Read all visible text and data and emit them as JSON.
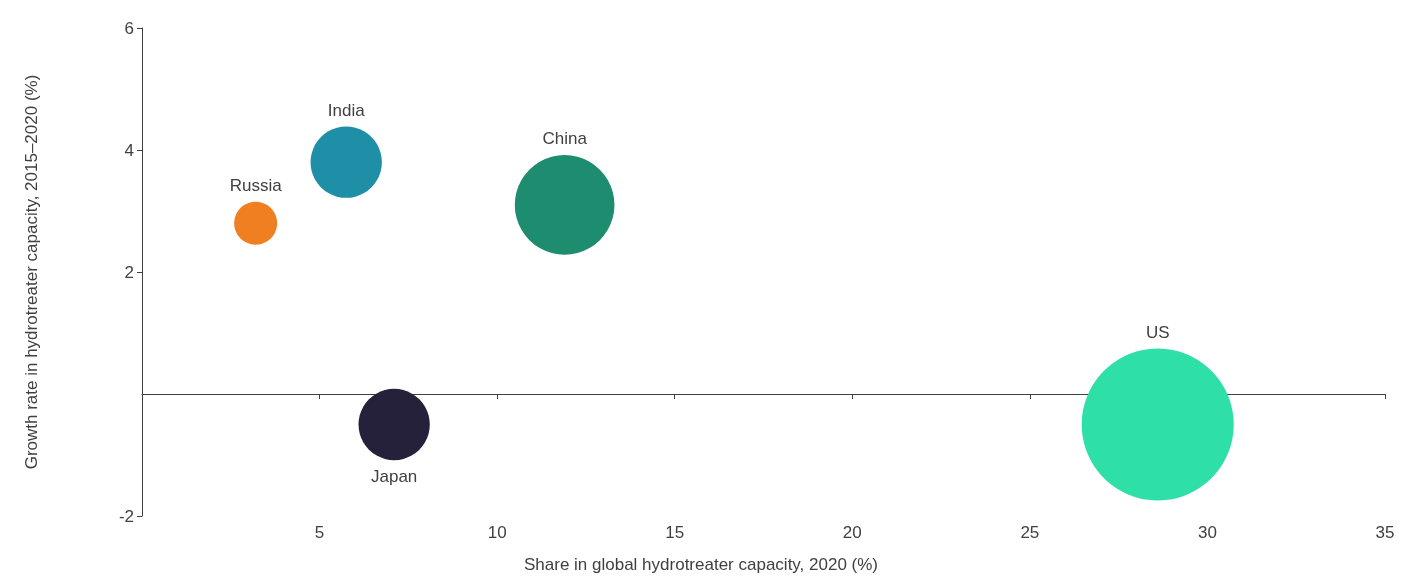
{
  "chart_data": {
    "type": "bubble",
    "xlabel": "Share in global hydrotreater capacity, 2020 (%)",
    "ylabel": "Growth rate in hydrotreater capacity, 2015–2020 (%)",
    "series": [
      {
        "name": "Russia",
        "color": "#f07f22",
        "x": [
          3.2
        ],
        "values": [
          2.8
        ],
        "sizes": [
          0.08
        ]
      },
      {
        "name": "India",
        "color": "#1e8fa6",
        "x": [
          5.75
        ],
        "values": [
          3.8
        ],
        "sizes": [
          0.22
        ]
      },
      {
        "name": "China",
        "color": "#1e8c6e",
        "x": [
          11.9
        ],
        "values": [
          3.1
        ],
        "sizes": [
          0.43
        ]
      },
      {
        "name": "Japan",
        "color": "#25213a",
        "x": [
          7.1
        ],
        "values": [
          -0.5
        ],
        "sizes": [
          0.22
        ]
      },
      {
        "name": "US",
        "color": "#2ee0a8",
        "x": [
          28.6
        ],
        "values": [
          -0.5
        ],
        "sizes": [
          1
        ]
      }
    ],
    "xlim": [
      0,
      35
    ],
    "xticks": [
      {
        "value": 0,
        "label": null
      },
      5,
      10,
      15,
      20,
      25,
      30,
      35
    ],
    "ylim": [
      -2,
      6
    ],
    "yticks": [
      -2,
      2,
      4,
      6
    ],
    "grid": false
  }
}
